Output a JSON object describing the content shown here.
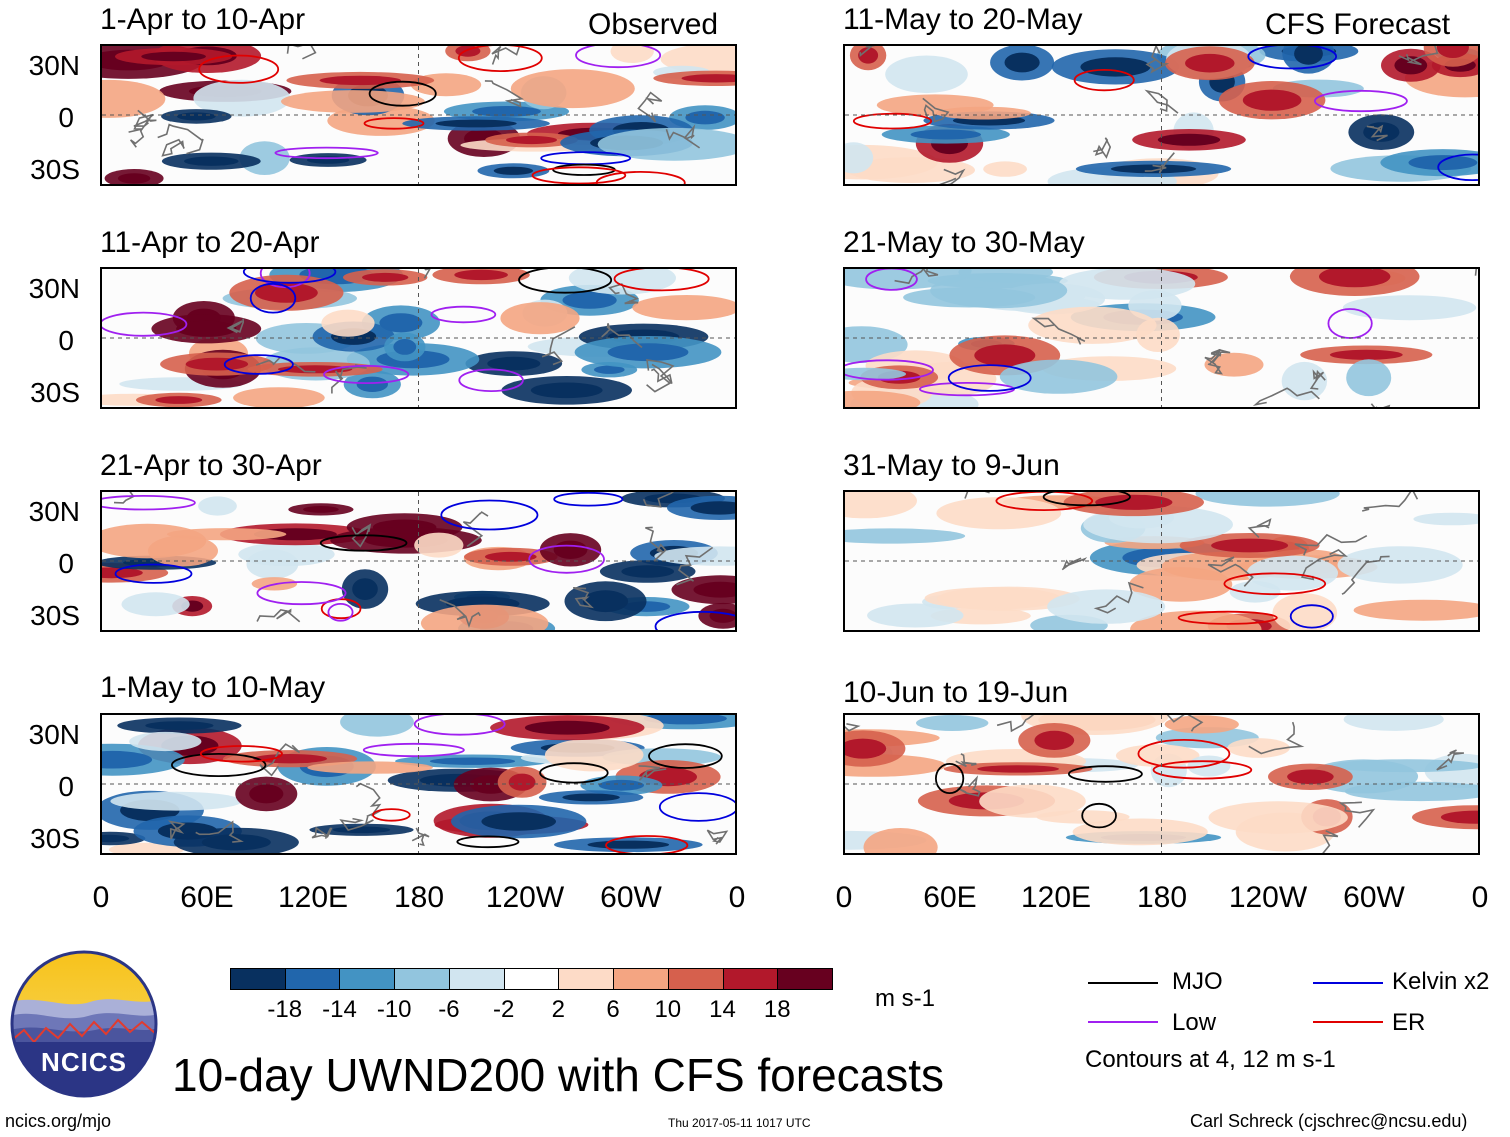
{
  "headers": {
    "left": "Observed",
    "right": "CFS Forecast"
  },
  "panels": [
    {
      "title": "1-Apr to 10-Apr"
    },
    {
      "title": "11-Apr to 20-Apr"
    },
    {
      "title": "21-Apr to 30-Apr"
    },
    {
      "title": "1-May to 10-May"
    },
    {
      "title": "11-May to 20-May"
    },
    {
      "title": "21-May to 30-May"
    },
    {
      "title": "31-May to 9-Jun"
    },
    {
      "title": "10-Jun to 19-Jun"
    }
  ],
  "lat_ticks": [
    "30N",
    "0",
    "30S"
  ],
  "lon_ticks": [
    "0",
    "60E",
    "120E",
    "180",
    "120W",
    "60W",
    "0"
  ],
  "colorbar": {
    "levels": [
      "-18",
      "-14",
      "-10",
      "-6",
      "-2",
      "2",
      "6",
      "10",
      "14",
      "18"
    ],
    "colors": [
      "#08305f",
      "#2166ac",
      "#4393c3",
      "#92c5de",
      "#d1e5f0",
      "#ffffff",
      "#fddbc7",
      "#f4a582",
      "#d6604d",
      "#b2182b",
      "#67001f"
    ],
    "units": "m s-1"
  },
  "legend": {
    "items": [
      {
        "label": "MJO",
        "color": "#000000"
      },
      {
        "label": "Kelvin x2",
        "color": "#0000dd"
      },
      {
        "label": "Low",
        "color": "#a020f0"
      },
      {
        "label": "ER",
        "color": "#e00000"
      }
    ],
    "note": "Contours at 4, 12 m s-1"
  },
  "logo": {
    "text": "NCICS"
  },
  "title": "10-day UWND200 with CFS forecasts",
  "footer": {
    "url": "ncics.org/mjo",
    "timestamp": "Thu 2017-05-11 1017 UTC",
    "credit": "Carl Schreck (cjschrec@ncsu.edu)"
  }
}
